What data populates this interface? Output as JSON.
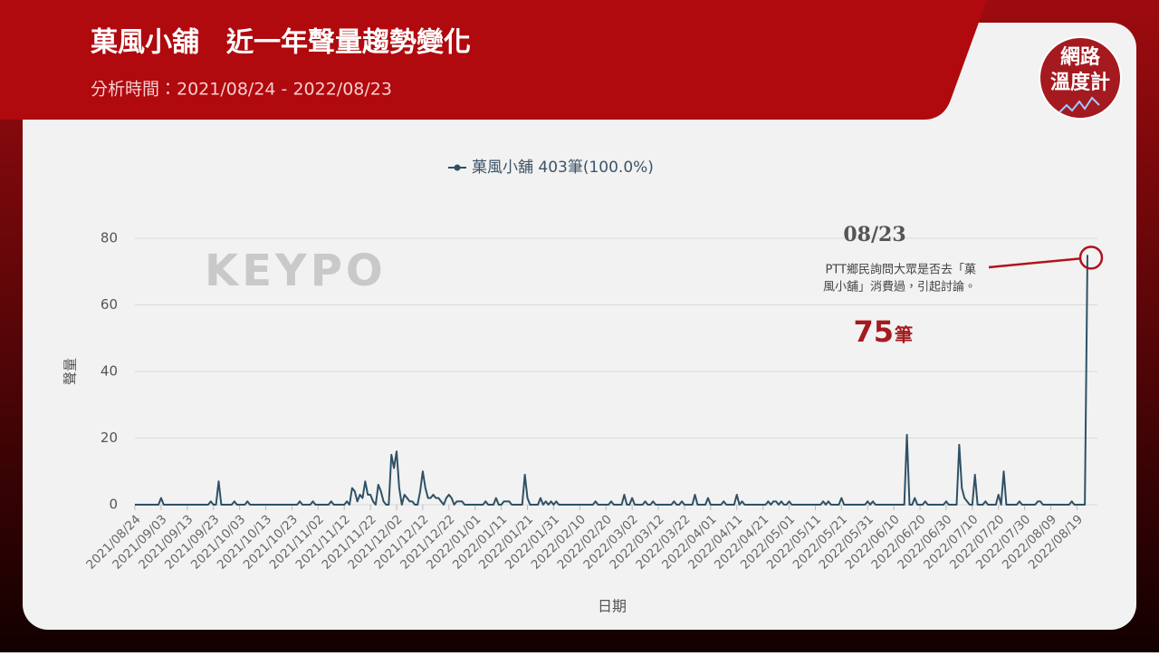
{
  "header": {
    "title": "菓風小舖　近一年聲量趨勢變化",
    "subtitle": "分析時間：2021/08/24 - 2022/08/23"
  },
  "logo": {
    "line1": "網路",
    "line2": "溫度計"
  },
  "watermark": "KEYPO",
  "chart_data": {
    "type": "line",
    "x_label": "日期",
    "y_label": "聲量",
    "x": [
      "2021/08/24",
      "2021/09/02",
      "2021/09/03",
      "2021/09/04",
      "2021/09/21",
      "2021/09/22",
      "2021/09/23",
      "2021/09/24",
      "2021/09/25",
      "2021/09/26",
      "2021/09/30",
      "2021/10/01",
      "2021/10/02",
      "2021/10/05",
      "2021/10/06",
      "2021/10/07",
      "2021/10/25",
      "2021/10/26",
      "2021/10/27",
      "2021/10/30",
      "2021/10/31",
      "2021/11/01",
      "2021/11/06",
      "2021/11/07",
      "2021/11/08",
      "2021/11/12",
      "2021/11/13",
      "2021/11/14",
      "2021/11/15",
      "2021/11/16",
      "2021/11/17",
      "2021/11/18",
      "2021/11/19",
      "2021/11/20",
      "2021/11/21",
      "2021/11/22",
      "2021/11/23",
      "2021/11/24",
      "2021/11/25",
      "2021/11/26",
      "2021/11/27",
      "2021/11/28",
      "2021/11/29",
      "2021/11/30",
      "2021/12/01",
      "2021/12/02",
      "2021/12/03",
      "2021/12/04",
      "2021/12/05",
      "2021/12/06",
      "2021/12/07",
      "2021/12/08",
      "2021/12/09",
      "2021/12/10",
      "2021/12/11",
      "2021/12/12",
      "2021/12/13",
      "2021/12/14",
      "2021/12/15",
      "2021/12/16",
      "2021/12/17",
      "2021/12/18",
      "2021/12/19",
      "2021/12/20",
      "2021/12/21",
      "2021/12/22",
      "2021/12/23",
      "2021/12/24",
      "2021/12/25",
      "2021/12/26",
      "2021/12/27",
      "2021/12/28",
      "2022/01/04",
      "2022/01/05",
      "2022/01/06",
      "2022/01/08",
      "2022/01/09",
      "2022/01/10",
      "2022/01/11",
      "2022/01/12",
      "2022/01/13",
      "2022/01/14",
      "2022/01/15",
      "2022/01/19",
      "2022/01/20",
      "2022/01/21",
      "2022/01/22",
      "2022/01/25",
      "2022/01/26",
      "2022/01/27",
      "2022/01/28",
      "2022/01/29",
      "2022/01/30",
      "2022/01/31",
      "2022/02/01",
      "2022/02/02",
      "2022/02/15",
      "2022/02/16",
      "2022/02/17",
      "2022/02/21",
      "2022/02/22",
      "2022/02/23",
      "2022/02/26",
      "2022/02/27",
      "2022/02/28",
      "2022/03/01",
      "2022/03/02",
      "2022/03/03",
      "2022/03/06",
      "2022/03/07",
      "2022/03/08",
      "2022/03/09",
      "2022/03/10",
      "2022/03/11",
      "2022/03/17",
      "2022/03/18",
      "2022/03/19",
      "2022/03/20",
      "2022/03/21",
      "2022/03/22",
      "2022/03/25",
      "2022/03/26",
      "2022/03/27",
      "2022/03/30",
      "2022/03/31",
      "2022/04/01",
      "2022/04/05",
      "2022/04/06",
      "2022/04/07",
      "2022/04/10",
      "2022/04/11",
      "2022/04/12",
      "2022/04/13",
      "2022/04/14",
      "2022/04/22",
      "2022/04/23",
      "2022/04/24",
      "2022/04/25",
      "2022/04/26",
      "2022/04/27",
      "2022/04/28",
      "2022/04/29",
      "2022/04/30",
      "2022/05/01",
      "2022/05/02",
      "2022/05/13",
      "2022/05/14",
      "2022/05/15",
      "2022/05/16",
      "2022/05/17",
      "2022/05/20",
      "2022/05/21",
      "2022/05/22",
      "2022/05/30",
      "2022/05/31",
      "2022/06/01",
      "2022/06/02",
      "2022/06/03",
      "2022/06/14",
      "2022/06/15",
      "2022/06/16",
      "2022/06/17",
      "2022/06/18",
      "2022/06/19",
      "2022/06/21",
      "2022/06/22",
      "2022/06/23",
      "2022/06/29",
      "2022/06/30",
      "2022/07/01",
      "2022/07/04",
      "2022/07/05",
      "2022/07/06",
      "2022/07/07",
      "2022/07/08",
      "2022/07/09",
      "2022/07/10",
      "2022/07/11",
      "2022/07/12",
      "2022/07/14",
      "2022/07/15",
      "2022/07/16",
      "2022/07/19",
      "2022/07/20",
      "2022/07/21",
      "2022/07/22",
      "2022/07/23",
      "2022/07/27",
      "2022/07/28",
      "2022/07/29",
      "2022/08/03",
      "2022/08/04",
      "2022/08/05",
      "2022/08/06",
      "2022/08/16",
      "2022/08/17",
      "2022/08/18",
      "2022/08/22",
      "2022/08/23"
    ],
    "series": [
      {
        "name": "菓風小舖 403筆(100.0%)",
        "color": "#2f5166",
        "values": [
          0,
          0,
          2,
          0,
          0,
          1,
          0,
          0,
          7,
          0,
          0,
          1,
          0,
          0,
          1,
          0,
          0,
          1,
          0,
          0,
          1,
          0,
          0,
          1,
          0,
          0,
          1,
          0,
          5,
          4,
          1,
          3,
          2,
          7,
          3,
          3,
          1,
          0,
          6,
          4,
          1,
          0,
          0,
          15,
          11,
          16,
          5,
          0,
          3,
          2,
          1,
          1,
          0,
          0,
          4,
          10,
          5,
          2,
          2,
          3,
          2,
          2,
          1,
          0,
          2,
          3,
          2,
          0,
          1,
          1,
          1,
          0,
          0,
          1,
          0,
          0,
          2,
          0,
          0,
          1,
          1,
          1,
          0,
          0,
          9,
          2,
          0,
          0,
          2,
          0,
          1,
          0,
          1,
          0,
          1,
          0,
          0,
          1,
          0,
          0,
          1,
          0,
          0,
          3,
          0,
          0,
          2,
          0,
          0,
          1,
          0,
          0,
          1,
          0,
          0,
          1,
          0,
          0,
          1,
          0,
          0,
          3,
          0,
          0,
          2,
          0,
          0,
          1,
          0,
          0,
          3,
          0,
          1,
          0,
          0,
          1,
          0,
          1,
          1,
          0,
          1,
          0,
          0,
          1,
          0,
          0,
          1,
          0,
          1,
          0,
          0,
          2,
          0,
          0,
          1,
          0,
          1,
          0,
          0,
          21,
          0,
          0,
          2,
          0,
          0,
          1,
          0,
          0,
          1,
          0,
          0,
          18,
          5,
          2,
          1,
          0,
          0,
          9,
          0,
          0,
          1,
          0,
          0,
          3,
          0,
          10,
          0,
          0,
          1,
          0,
          0,
          1,
          1,
          0,
          0,
          1,
          0,
          0,
          75
        ]
      }
    ],
    "xlim": [
      "2021/08/24",
      "2022/08/23"
    ],
    "xticks": [
      "2021/08/24",
      "2021/09/03",
      "2021/09/13",
      "2021/09/23",
      "2021/10/03",
      "2021/10/13",
      "2021/10/23",
      "2021/11/02",
      "2021/11/12",
      "2021/11/22",
      "2021/12/02",
      "2021/12/12",
      "2021/12/22",
      "2022/01/01",
      "2022/01/11",
      "2022/01/21",
      "2022/01/31",
      "2022/02/10",
      "2022/02/20",
      "2022/03/02",
      "2022/03/12",
      "2022/03/22",
      "2022/04/01",
      "2022/04/11",
      "2022/04/21",
      "2022/05/01",
      "2022/05/11",
      "2022/05/21",
      "2022/05/31",
      "2022/06/10",
      "2022/06/20",
      "2022/06/30",
      "2022/07/10",
      "2022/07/20",
      "2022/07/30",
      "2022/08/09",
      "2022/08/19"
    ],
    "ylim": [
      0,
      80
    ],
    "yticks": [
      0,
      20,
      40,
      60,
      80
    ],
    "grid": true,
    "legend": "top",
    "annotation": {
      "date": "08/23",
      "lines": [
        "PTT鄉民詢問大眾是否去「菓",
        "風小舖」消費過，引起討論。"
      ],
      "value": 75,
      "unit": "筆"
    }
  }
}
